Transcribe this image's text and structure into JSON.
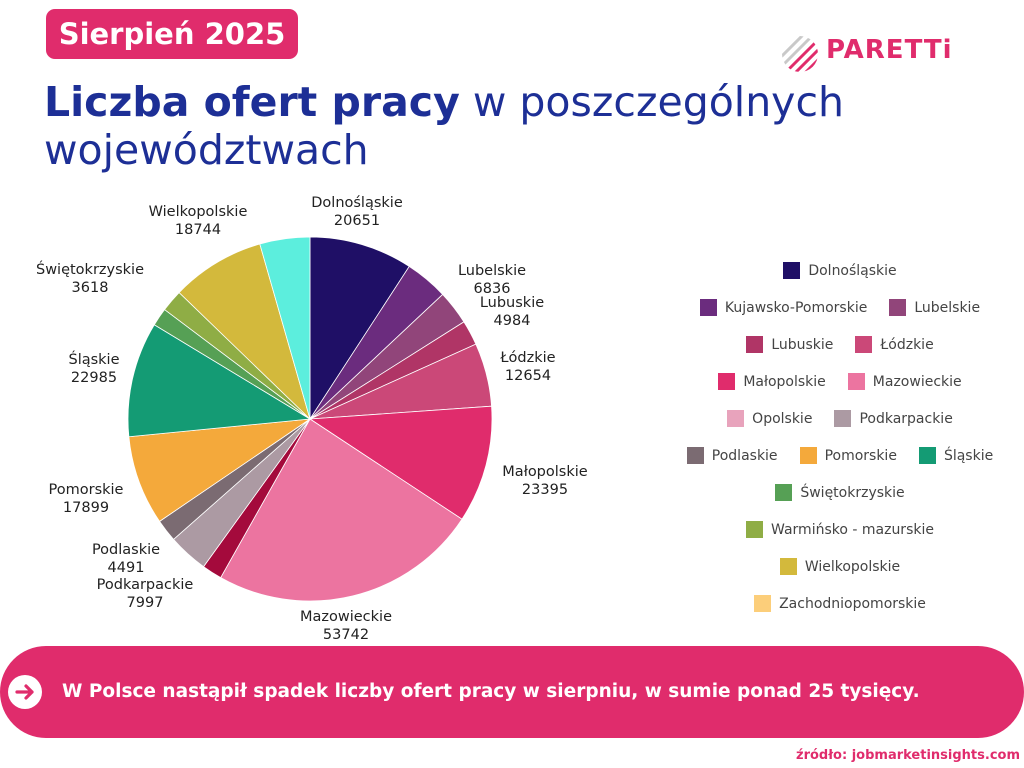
{
  "header": {
    "badge": "Sierpień 2025",
    "title_bold": "Liczba ofert pracy",
    "title_rest": " w poszczególnych województwach"
  },
  "logo": {
    "text": "PARETTi",
    "icon": "paretti-logo-icon",
    "color": "#e02c6c"
  },
  "chart_data": {
    "type": "pie",
    "slices": [
      {
        "label": "Dolnośląskie",
        "value": 20651,
        "color": "#1f0f66",
        "value_label": "20651"
      },
      {
        "label": "Kujawsko-Pomorskie",
        "value": 8600,
        "color": "#6b2c7e",
        "value_label": ""
      },
      {
        "label": "Lubelskie",
        "value": 6836,
        "color": "#91457a",
        "value_label": "6836"
      },
      {
        "label": "Lubuskie",
        "value": 4984,
        "color": "#b03566",
        "value_label": "4984"
      },
      {
        "label": "Łódzkie",
        "value": 12654,
        "color": "#cb4878",
        "value_label": "12654"
      },
      {
        "label": "Małopolskie",
        "value": 23395,
        "color": "#e02c6c",
        "value_label": "23395"
      },
      {
        "label": "Mazowieckie",
        "value": 53742,
        "color": "#ec74a0",
        "value_label": "53742"
      },
      {
        "label": "Opolskie",
        "value": 4000,
        "color": "#a40a3c",
        "value_label": ""
      },
      {
        "label": "Podkarpackie",
        "value": 7997,
        "color": "#ac9aa3",
        "value_label": "7997"
      },
      {
        "label": "Podlaskie",
        "value": 4491,
        "color": "#7b6b72",
        "value_label": "4491"
      },
      {
        "label": "Pomorskie",
        "value": 17899,
        "color": "#f4a93b",
        "value_label": "17899"
      },
      {
        "label": "Śląskie",
        "value": 22985,
        "color": "#149b74",
        "value_label": "22985"
      },
      {
        "label": "Świętokrzyskie",
        "value": 3618,
        "color": "#56a055",
        "value_label": "3618"
      },
      {
        "label": "Warmińsko - mazurskie",
        "value": 4400,
        "color": "#8fad45",
        "value_label": ""
      },
      {
        "label": "Wielkopolskie",
        "value": 18744,
        "color": "#d3b93c",
        "value_label": "18744"
      },
      {
        "label": "Zachodniopomorskie",
        "value": 10000,
        "color": "#5ceedd",
        "value_label": ""
      }
    ],
    "legend": [
      {
        "label": "Dolnośląskie",
        "color": "#1f0f66"
      },
      {
        "label": "Kujawsko-Pomorskie",
        "color": "#6b2c7e"
      },
      {
        "label": "Lubelskie",
        "color": "#91457a"
      },
      {
        "label": "Lubuskie",
        "color": "#b03566"
      },
      {
        "label": "Łódzkie",
        "color": "#cb4878"
      },
      {
        "label": "Małopolskie",
        "color": "#e02c6c"
      },
      {
        "label": "Mazowieckie",
        "color": "#ec74a0"
      },
      {
        "label": "Opolskie",
        "color": "#e8a3bc"
      },
      {
        "label": "Podkarpackie",
        "color": "#ac9aa3"
      },
      {
        "label": "Podlaskie",
        "color": "#7b6b72"
      },
      {
        "label": "Pomorskie",
        "color": "#f4a93b"
      },
      {
        "label": "Śląskie",
        "color": "#149b74"
      },
      {
        "label": "Świętokrzyskie",
        "color": "#56a055"
      },
      {
        "label": "Warmińsko - mazurskie",
        "color": "#8fad45"
      },
      {
        "label": "Wielkopolskie",
        "color": "#d3b93c"
      },
      {
        "label": "Zachodniopomorskie",
        "color": "#fcce7a"
      }
    ],
    "legend_position": "right"
  },
  "banner": {
    "icon": "arrow-right-icon",
    "text": "W Polsce nastąpił spadek liczby ofert pracy w sierpniu, w sumie ponad 25 tysięcy."
  },
  "footer": {
    "source": "źródło: jobmarketinsights.com"
  }
}
